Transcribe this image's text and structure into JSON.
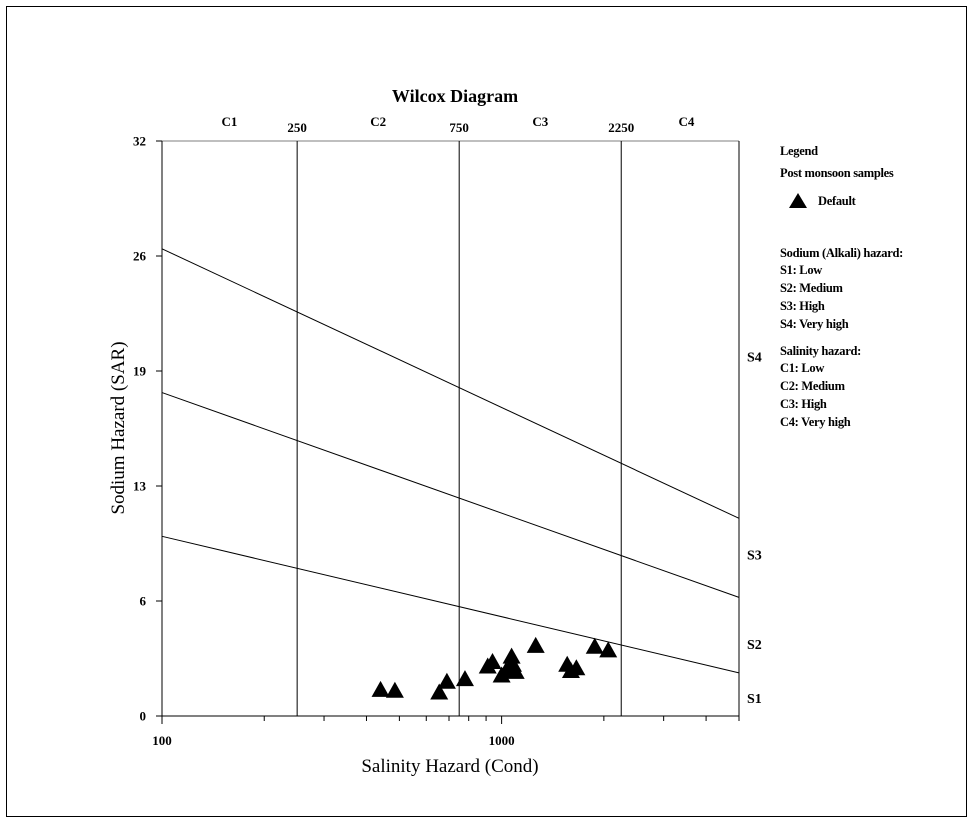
{
  "chart_data": {
    "type": "scatter",
    "title": "Wilcox Diagram",
    "xlabel": "Salinity Hazard (Cond)",
    "ylabel": "Sodium Hazard (SAR)",
    "x_scale": "log",
    "xlim": [
      100,
      5000
    ],
    "ylim": [
      0,
      32
    ],
    "x_ticks": [
      {
        "value": 100,
        "label": "100"
      },
      {
        "value": 1000,
        "label": "1000"
      }
    ],
    "y_ticks": [
      {
        "value": 0,
        "label": "0"
      },
      {
        "value": 6.4,
        "label": "6"
      },
      {
        "value": 12.8,
        "label": "13"
      },
      {
        "value": 19.2,
        "label": "19"
      },
      {
        "value": 25.6,
        "label": "26"
      },
      {
        "value": 32,
        "label": "32"
      }
    ],
    "salinity_boundaries": [
      {
        "value": 250,
        "label": "250"
      },
      {
        "value": 750,
        "label": "750"
      },
      {
        "value": 2250,
        "label": "2250"
      }
    ],
    "salinity_classes": [
      {
        "label": "C1",
        "x": 158
      },
      {
        "label": "C2",
        "x": 433
      },
      {
        "label": "C3",
        "x": 1300
      },
      {
        "label": "C4",
        "x": 3500
      }
    ],
    "sodium_boundaries": [
      {
        "name": "S1-S2",
        "from": [
          100,
          10.0
        ],
        "to": [
          5000,
          2.4
        ]
      },
      {
        "name": "S2-S3",
        "from": [
          100,
          18.0
        ],
        "to": [
          5000,
          6.6
        ]
      },
      {
        "name": "S3-S4",
        "from": [
          100,
          26.0
        ],
        "to": [
          5000,
          11.0
        ]
      }
    ],
    "sodium_classes": [
      {
        "label": "S1",
        "y": 1.0
      },
      {
        "label": "S2",
        "y": 4.0
      },
      {
        "label": "S3",
        "y": 9.0
      },
      {
        "label": "S4",
        "y": 20.0
      }
    ],
    "series": [
      {
        "name": "Default",
        "marker": "triangle",
        "color": "#000000",
        "points": [
          [
            440,
            1.4
          ],
          [
            485,
            1.35
          ],
          [
            655,
            1.25
          ],
          [
            690,
            1.85
          ],
          [
            780,
            2.0
          ],
          [
            910,
            2.7
          ],
          [
            940,
            2.95
          ],
          [
            1000,
            2.2
          ],
          [
            1030,
            2.45
          ],
          [
            1055,
            2.6
          ],
          [
            1070,
            3.25
          ],
          [
            1080,
            2.8
          ],
          [
            1100,
            2.4
          ],
          [
            1260,
            3.85
          ],
          [
            1560,
            2.8
          ],
          [
            1600,
            2.45
          ],
          [
            1660,
            2.6
          ],
          [
            1880,
            3.8
          ],
          [
            2060,
            3.6
          ]
        ]
      }
    ],
    "legend": {
      "title": "Legend",
      "group": "Post monsoon samples",
      "series_label": "Default",
      "sodium_heading": "Sodium (Alkali) hazard:",
      "sodium_items": [
        "S1: Low",
        "S2: Medium",
        "S3: High",
        "S4: Very high"
      ],
      "salinity_heading": "Salinity hazard:",
      "salinity_items": [
        "C1: Low",
        "C2: Medium",
        "C3: High",
        "C4: Very high"
      ],
      "placement": "right"
    },
    "grid": false
  }
}
